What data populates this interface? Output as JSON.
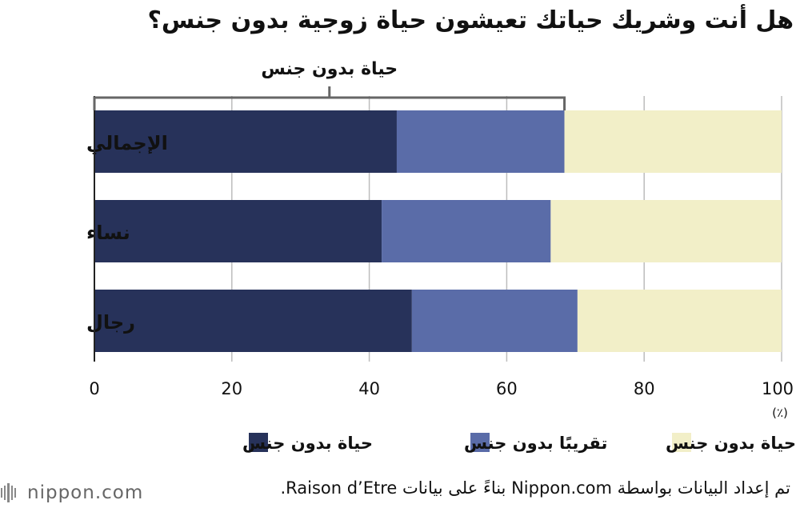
{
  "chart_data": {
    "type": "bar",
    "orientation": "horizontal",
    "stacked": true,
    "title": "هل أنت وشريك حياتك تعيشون حياة زوجية بدون جنس؟",
    "categories": [
      "الإجمالي",
      "نساء",
      "رجال"
    ],
    "series": [
      {
        "name": "حياة بدون جنس",
        "color": "#27325a",
        "values": [
          44.0,
          41.8,
          46.2
        ]
      },
      {
        "name": "تقريبًا بدون جنس",
        "color": "#5a6ca8",
        "values": [
          24.4,
          24.6,
          24.1
        ]
      },
      {
        "name": "حياة بدون جنس",
        "color": "#f2efc8",
        "values": [
          31.6,
          33.6,
          29.7
        ]
      }
    ],
    "xlim": [
      0,
      100
    ],
    "xticks": [
      "0",
      "20",
      "40",
      "60",
      "80",
      "100"
    ],
    "xunit": "(٪)",
    "bracket": {
      "label": "حياة بدون جنس",
      "from": 0,
      "to": 68.4
    },
    "grid": true,
    "legend_position": "bottom"
  },
  "source": "تم إعداد البيانات بواسطة Nippon.com بناءً على بيانات Raison d’Etre.",
  "logo_text": "nippon.com"
}
